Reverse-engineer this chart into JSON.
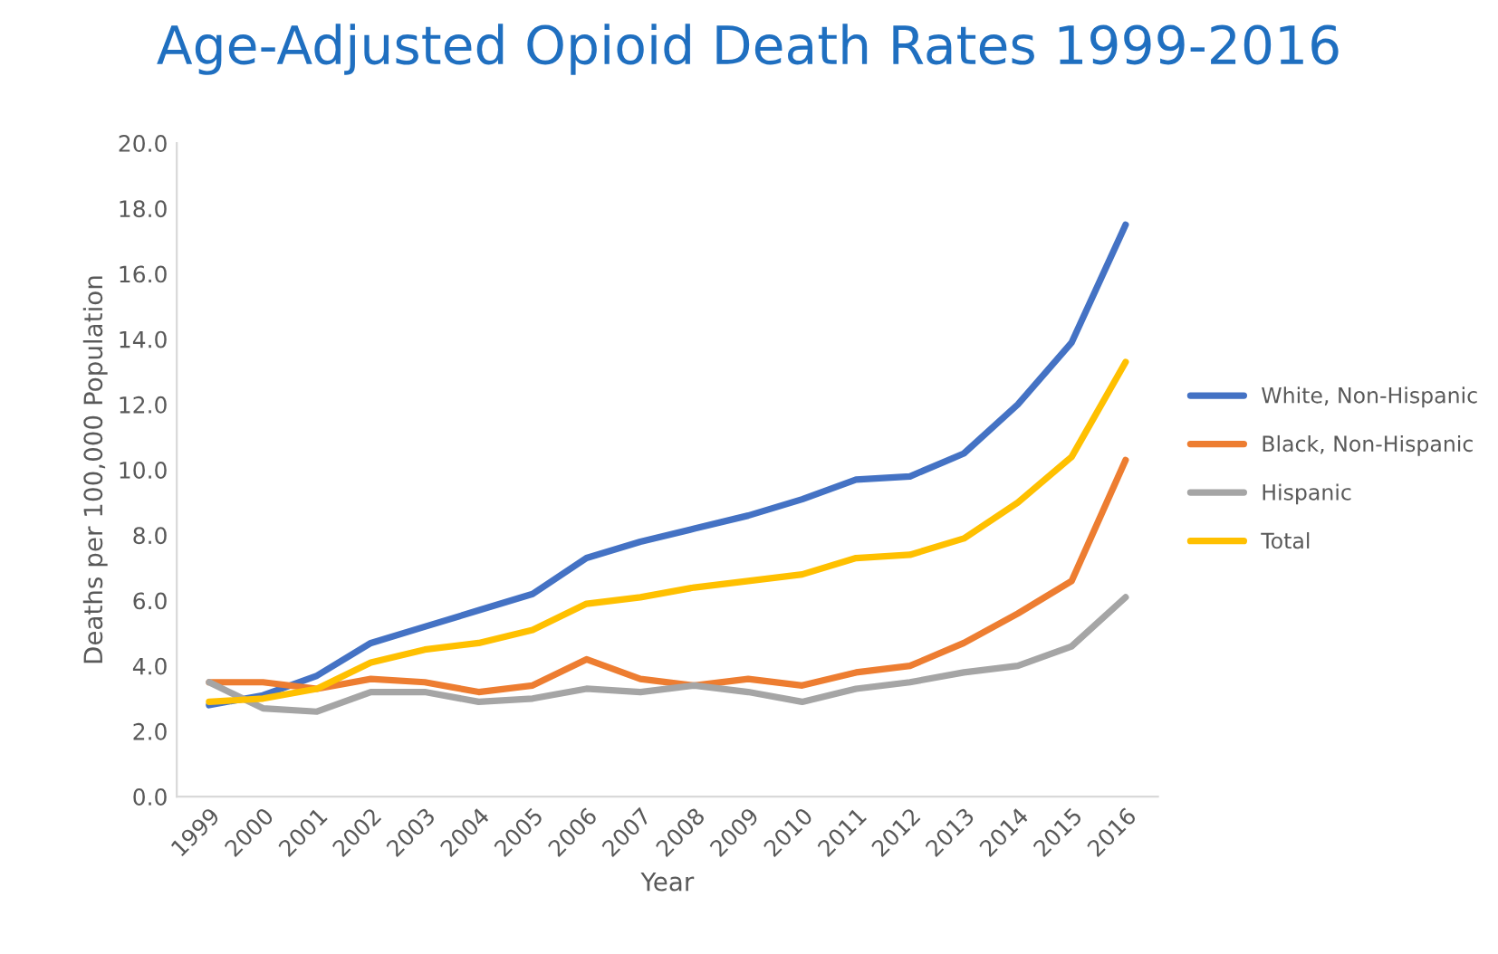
{
  "chart_data": {
    "type": "line",
    "title": "Age-Adjusted Opioid Death Rates 1999-2016",
    "xlabel": "Year",
    "ylabel": "Deaths per 100,000 Population",
    "categories": [
      "1999",
      "2000",
      "2001",
      "2002",
      "2003",
      "2004",
      "2005",
      "2006",
      "2007",
      "2008",
      "2009",
      "2010",
      "2011",
      "2012",
      "2013",
      "2014",
      "2015",
      "2016"
    ],
    "series": [
      {
        "name": "White, Non-Hispanic",
        "color": "#4472c4",
        "values": [
          2.8,
          3.1,
          3.7,
          4.7,
          5.2,
          5.7,
          6.2,
          7.3,
          7.8,
          8.2,
          8.6,
          9.1,
          9.7,
          9.8,
          10.5,
          12.0,
          13.9,
          17.5
        ]
      },
      {
        "name": "Black, Non-Hispanic",
        "color": "#ed7d31",
        "values": [
          3.5,
          3.5,
          3.3,
          3.6,
          3.5,
          3.2,
          3.4,
          4.2,
          3.6,
          3.4,
          3.6,
          3.4,
          3.8,
          4.0,
          4.7,
          5.6,
          6.6,
          10.3
        ]
      },
      {
        "name": "Hispanic",
        "color": "#a5a5a5",
        "values": [
          3.5,
          2.7,
          2.6,
          3.2,
          3.2,
          2.9,
          3.0,
          3.3,
          3.2,
          3.4,
          3.2,
          2.9,
          3.3,
          3.5,
          3.8,
          4.0,
          4.6,
          6.1
        ]
      },
      {
        "name": "Total",
        "color": "#ffc000",
        "values": [
          2.9,
          3.0,
          3.3,
          4.1,
          4.5,
          4.7,
          5.1,
          5.9,
          6.1,
          6.4,
          6.6,
          6.8,
          7.3,
          7.4,
          7.9,
          9.0,
          10.4,
          13.3
        ]
      }
    ],
    "ylim": [
      0,
      20
    ],
    "yticks": [
      {
        "value": 0,
        "label": "0.0"
      },
      {
        "value": 2,
        "label": "2.0"
      },
      {
        "value": 4,
        "label": "4.0"
      },
      {
        "value": 6,
        "label": "6.0"
      },
      {
        "value": 8,
        "label": "8.0"
      },
      {
        "value": 10,
        "label": "10.0"
      },
      {
        "value": 12,
        "label": "12.0"
      },
      {
        "value": 14,
        "label": "14.0"
      },
      {
        "value": 16,
        "label": "16.0"
      },
      {
        "value": 18,
        "label": "18.0"
      },
      {
        "value": 20,
        "label": "20.0"
      }
    ],
    "grid": false,
    "legend": "right",
    "marker": "none",
    "line_style": "solid"
  }
}
